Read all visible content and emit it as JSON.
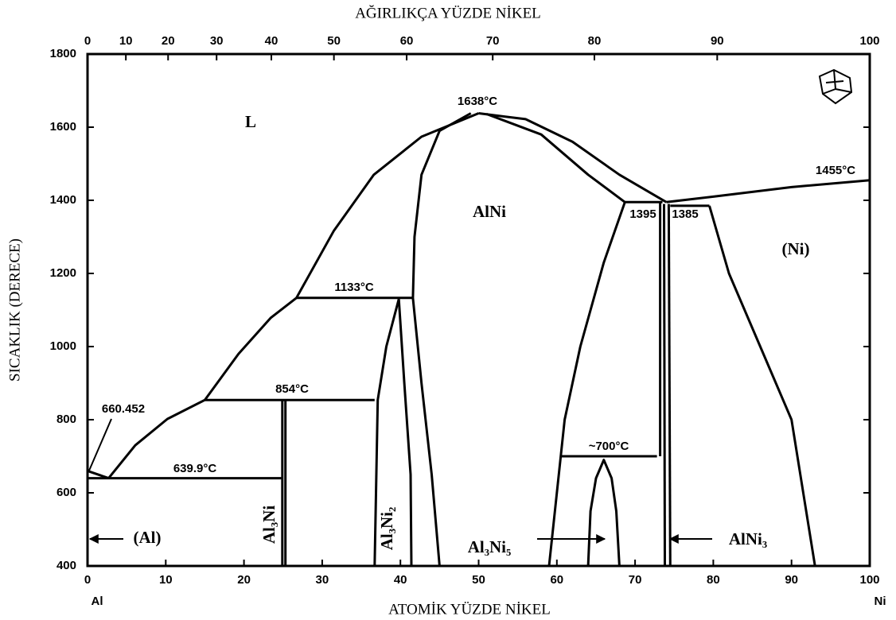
{
  "chart_data": {
    "type": "phase-diagram",
    "x_label": "ATOMİK YÜZDE NİKEL",
    "x2_label": "AĞIRLIKÇA YÜZDE NİKEL",
    "y_label": "SICAKLIK (DERECE)",
    "endpoints": [
      "Al",
      "Ni"
    ],
    "xlim": [
      0,
      100
    ],
    "xticks": [
      0,
      10,
      20,
      30,
      40,
      50,
      60,
      70,
      80,
      90,
      100
    ],
    "x2ticks": [
      0,
      {
        "value": 4.9,
        "label": "10"
      },
      {
        "value": 10.3,
        "label": "20"
      },
      {
        "value": 16.5,
        "label": "30"
      },
      {
        "value": 23.5,
        "label": "40"
      },
      {
        "value": 31.5,
        "label": "50"
      },
      {
        "value": 40.8,
        "label": "60"
      },
      {
        "value": 51.8,
        "label": "70"
      },
      {
        "value": 64.8,
        "label": "80"
      },
      {
        "value": 80.5,
        "label": "90"
      },
      100
    ],
    "ylim": [
      400,
      1800
    ],
    "yticks": [
      400,
      600,
      800,
      1000,
      1200,
      1400,
      1600,
      1800
    ],
    "color": "#000000",
    "phases": [
      "L",
      "AlNi",
      "(Ni)",
      "(Al)",
      "Al₃Ni",
      "Al₃Ni₂",
      "Al₃Ni₅",
      "AlNi₃"
    ],
    "annotations": [
      "1638°C",
      "1455°C",
      "1395",
      "1385",
      "1133°C",
      "854°C",
      "660.452",
      "639.9°C",
      "~700°C"
    ],
    "boundaries": [
      {
        "points": [
          [
            0,
            660
          ],
          [
            2.7,
            640
          ]
        ]
      },
      {
        "points": [
          [
            2.7,
            640
          ],
          [
            6.1,
            730
          ],
          [
            10.2,
            802
          ],
          [
            15,
            854
          ],
          [
            19.3,
            980
          ],
          [
            23.4,
            1078
          ],
          [
            26.7,
            1133
          ],
          [
            31.5,
            1317
          ],
          [
            36.6,
            1470
          ],
          [
            42.7,
            1574
          ],
          [
            50,
            1638
          ]
        ]
      },
      {
        "points": [
          [
            50,
            1638
          ],
          [
            56,
            1622
          ],
          [
            62,
            1560
          ],
          [
            68,
            1470
          ],
          [
            74,
            1395
          ]
        ]
      },
      {
        "points": [
          [
            51,
            1636
          ],
          [
            58,
            1580
          ],
          [
            64,
            1470
          ],
          [
            68.7,
            1395
          ]
        ]
      },
      {
        "points": [
          [
            68.7,
            1395
          ],
          [
            73.5,
            1395
          ]
        ]
      },
      {
        "points": [
          [
            74,
            1395
          ],
          [
            80,
            1410
          ],
          [
            90,
            1436
          ],
          [
            100,
            1455
          ]
        ]
      },
      {
        "points": [
          [
            74.5,
            1385
          ],
          [
            79.5,
            1385
          ]
        ]
      },
      {
        "points": [
          [
            79.5,
            1385
          ],
          [
            82,
            1200
          ],
          [
            86,
            1000
          ],
          [
            90,
            800
          ],
          [
            93,
            400
          ]
        ]
      },
      {
        "points": [
          [
            49,
            1638
          ],
          [
            45,
            1590
          ],
          [
            42.7,
            1470
          ],
          [
            41.8,
            1300
          ],
          [
            41.6,
            1133
          ],
          [
            42.7,
            900
          ],
          [
            44,
            650
          ],
          [
            45,
            400
          ]
        ]
      },
      {
        "points": [
          [
            68.7,
            1395
          ],
          [
            66,
            1230
          ],
          [
            63,
            1000
          ],
          [
            61,
            800
          ],
          [
            60.5,
            700
          ],
          [
            59,
            400
          ]
        ]
      },
      {
        "points": [
          [
            73.2,
            1395
          ],
          [
            73.2,
            700
          ]
        ]
      },
      {
        "points": [
          [
            73.7,
            1390
          ],
          [
            73.8,
            400
          ]
        ]
      },
      {
        "points": [
          [
            74.3,
            1390
          ],
          [
            74.5,
            400
          ]
        ]
      },
      {
        "points": [
          [
            39.8,
            1130
          ],
          [
            38.2,
            1000
          ],
          [
            37.1,
            854
          ],
          [
            36.7,
            400
          ]
        ]
      },
      {
        "points": [
          [
            39.8,
            1130
          ],
          [
            40.5,
            900
          ],
          [
            41.3,
            650
          ],
          [
            41.4,
            400
          ]
        ]
      },
      {
        "points": [
          [
            24.9,
            854
          ],
          [
            24.9,
            400
          ]
        ]
      },
      {
        "points": [
          [
            25.3,
            854
          ],
          [
            25.3,
            400
          ]
        ]
      },
      {
        "points": [
          [
            64,
            400
          ],
          [
            64.3,
            550
          ],
          [
            65,
            640
          ],
          [
            66,
            690
          ],
          [
            67,
            640
          ],
          [
            67.6,
            550
          ],
          [
            68,
            400
          ]
        ]
      },
      {
        "points": [
          [
            26.7,
            1133
          ],
          [
            41.6,
            1133
          ]
        ]
      },
      {
        "points": [
          [
            15,
            854
          ],
          [
            36.7,
            854
          ]
        ]
      },
      {
        "points": [
          [
            0,
            639.9
          ],
          [
            25,
            639.9
          ]
        ]
      },
      {
        "points": [
          [
            60.5,
            700
          ],
          [
            72.8,
            700
          ]
        ]
      }
    ]
  }
}
